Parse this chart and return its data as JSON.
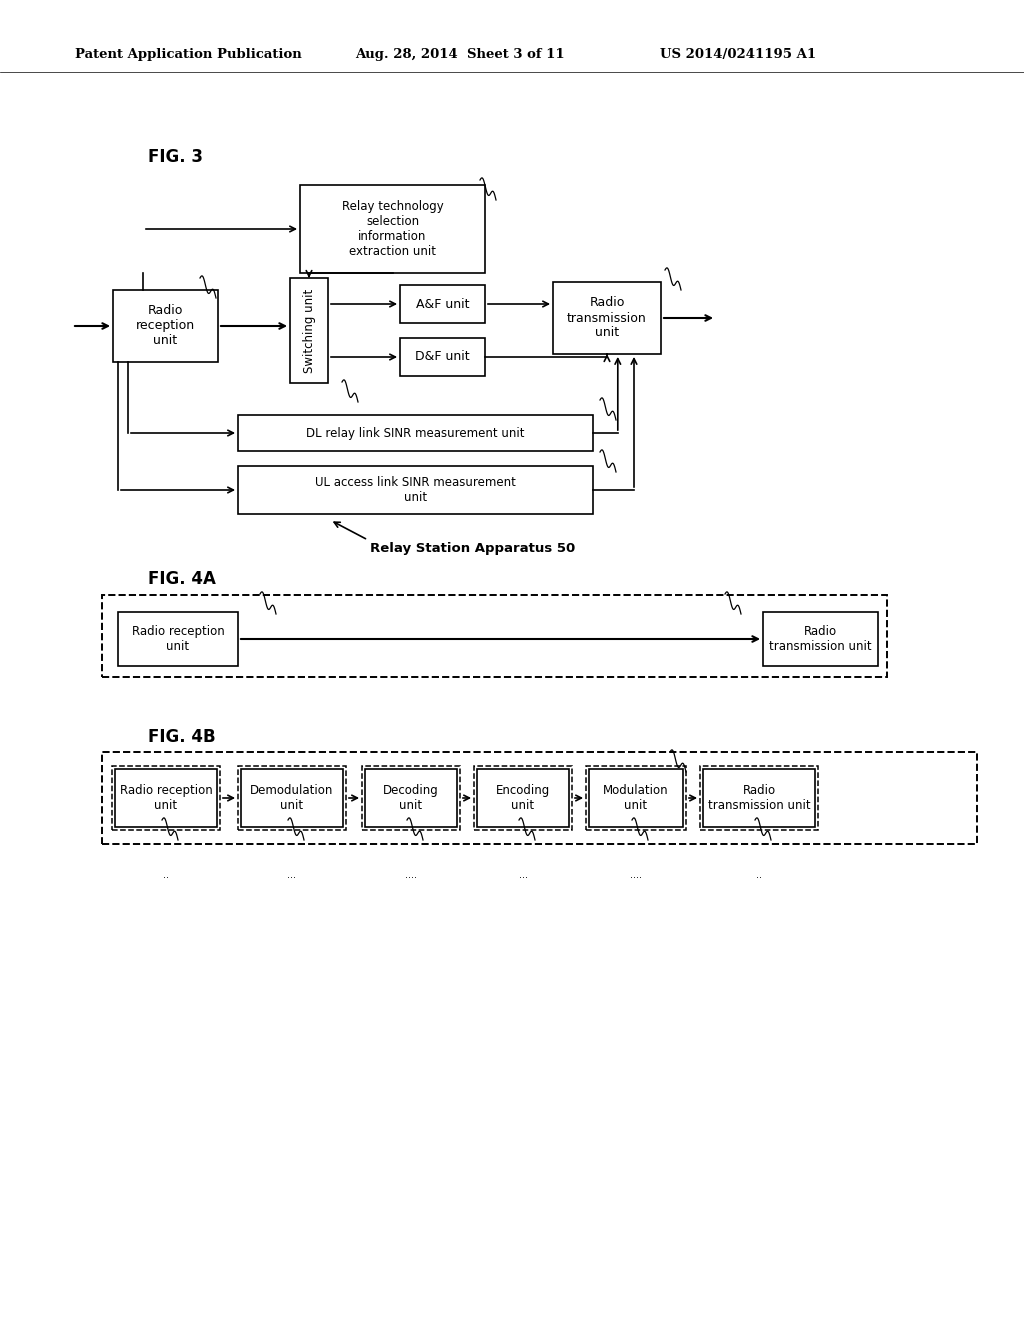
{
  "bg_color": "#ffffff",
  "header_text1": "Patent Application Publication",
  "header_text2": "Aug. 28, 2014  Sheet 3 of 11",
  "header_text3": "US 2014/0241195 A1",
  "fig3_label": "FIG. 3",
  "fig4a_label": "FIG. 4A",
  "fig4b_label": "FIG. 4B",
  "relay_station_label": "Relay Station Apparatus 50"
}
